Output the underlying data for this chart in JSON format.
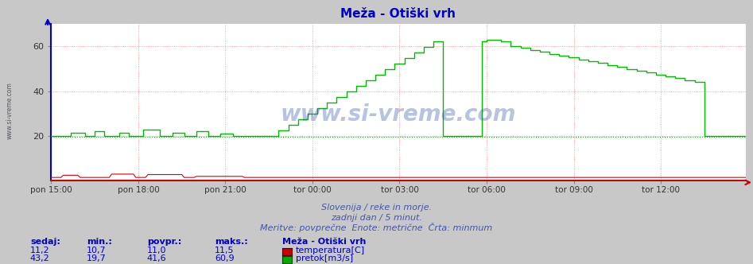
{
  "title": "Meža - Otiški vrh",
  "bg_color": "#c8c8c8",
  "plot_bg_color": "#ffffff",
  "title_color": "#0000cc",
  "grid_color": "#ff8888",
  "x_tick_labels": [
    "pon 15:00",
    "pon 18:00",
    "pon 21:00",
    "tor 00:00",
    "tor 03:00",
    "tor 06:00",
    "tor 09:00",
    "tor 12:00"
  ],
  "x_tick_positions": [
    0,
    36,
    72,
    108,
    144,
    180,
    216,
    252
  ],
  "ylim": [
    0,
    70
  ],
  "yticks": [
    20,
    40,
    60
  ],
  "total_points": 288,
  "temp_color": "#dd0000",
  "flow_color": "#00bb00",
  "watermark_text": "www.si-vreme.com",
  "footer_line1": "Slovenija / reke in morje.",
  "footer_line2": "zadnji dan / 5 minut.",
  "footer_line3": "Meritve: povprečne  Enote: metrične  Črta: minmum",
  "footer_color": "#4455aa",
  "left_label": "www.si-vreme.com",
  "temp_sedaj": "11,2",
  "temp_min": "10,7",
  "temp_povpr": "11,0",
  "temp_maks": "11,5",
  "flow_sedaj": "43,2",
  "flow_min": "19,7",
  "flow_povpr": "41,6",
  "flow_maks": "60,9",
  "table_color": "#0000cc",
  "spine_left_color": "#0000cc",
  "spine_bottom_color": "#cc0000"
}
